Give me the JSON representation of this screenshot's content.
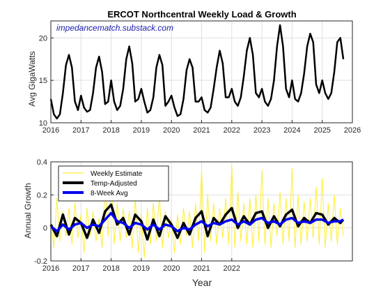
{
  "watermark": "impedancematch.substack.com",
  "colors": {
    "load": "#000000",
    "weekly": "#ffee33",
    "temp": "#000000",
    "avg": "#0000ee",
    "grid": "#dfdfdf",
    "axis": "#262626"
  },
  "chart_data": [
    {
      "type": "line",
      "title": "ERCOT Northcentral Weekly Load & Growth",
      "xlabel": "",
      "ylabel": "Avg GigaWatts",
      "xlim": [
        2016,
        2026
      ],
      "ylim": [
        10,
        22
      ],
      "grid": true,
      "x_ticks": [
        "2016",
        "2017",
        "2018",
        "2019",
        "2020",
        "2021",
        "2022",
        "2023",
        "2024",
        "2025",
        "2026"
      ],
      "y_ticks": [
        "10",
        "15",
        "20"
      ],
      "series": [
        {
          "name": "",
          "x": [
            2016.0,
            2016.1,
            2016.2,
            2016.3,
            2016.4,
            2016.5,
            2016.6,
            2016.7,
            2016.8,
            2016.9,
            2017.0,
            2017.1,
            2017.2,
            2017.3,
            2017.4,
            2017.5,
            2017.6,
            2017.7,
            2017.8,
            2017.9,
            2018.0,
            2018.1,
            2018.2,
            2018.3,
            2018.4,
            2018.5,
            2018.6,
            2018.7,
            2018.8,
            2018.9,
            2019.0,
            2019.1,
            2019.2,
            2019.3,
            2019.4,
            2019.5,
            2019.6,
            2019.7,
            2019.8,
            2019.9,
            2020.0,
            2020.1,
            2020.2,
            2020.3,
            2020.4,
            2020.5,
            2020.6,
            2020.7,
            2020.8,
            2020.9,
            2021.0,
            2021.1,
            2021.2,
            2021.3,
            2021.4,
            2021.5,
            2021.6,
            2021.7,
            2021.8,
            2021.9,
            2022.0,
            2022.1,
            2022.2,
            2022.3,
            2022.4,
            2022.5,
            2022.6,
            2022.7,
            2022.8,
            2022.9,
            2023.0,
            2023.1,
            2023.2,
            2023.3,
            2023.4,
            2023.5,
            2023.6,
            2023.7,
            2023.8,
            2023.9,
            2024.0,
            2024.1,
            2024.2,
            2024.3,
            2024.4,
            2024.5,
            2024.6,
            2024.7,
            2024.8,
            2024.9,
            2025.0,
            2025.1,
            2025.2,
            2025.3,
            2025.4,
            2025.5,
            2025.6,
            2025.7
          ],
          "values": [
            12.8,
            11.0,
            10.5,
            11.0,
            13.5,
            16.8,
            18.0,
            16.5,
            12.5,
            11.5,
            13.2,
            11.8,
            11.3,
            11.5,
            13.5,
            16.5,
            17.8,
            16.0,
            12.2,
            12.5,
            15.0,
            12.5,
            11.5,
            12.0,
            14.0,
            17.5,
            19.0,
            17.0,
            12.5,
            12.8,
            14.0,
            12.5,
            11.2,
            11.5,
            13.0,
            16.5,
            18.0,
            16.8,
            12.0,
            12.5,
            13.2,
            11.8,
            10.8,
            11.0,
            12.8,
            16.2,
            17.5,
            16.5,
            12.5,
            12.5,
            13.0,
            11.5,
            11.2,
            11.8,
            14.0,
            16.5,
            18.5,
            17.0,
            13.0,
            13.0,
            14.0,
            12.5,
            12.0,
            13.0,
            15.5,
            18.5,
            20.0,
            18.0,
            13.5,
            13.0,
            14.0,
            12.5,
            12.0,
            12.8,
            15.0,
            19.0,
            21.5,
            19.0,
            14.0,
            13.0,
            15.0,
            12.8,
            12.5,
            13.5,
            15.8,
            19.0,
            20.5,
            19.5,
            14.5,
            13.5,
            15.0,
            13.5,
            12.8,
            13.5,
            16.0,
            19.5,
            20.0,
            17.5
          ]
        }
      ]
    },
    {
      "type": "line",
      "title": "",
      "xlabel": "Year",
      "ylabel": "Annual Growth",
      "xlim": [
        2016,
        2026
      ],
      "ylim": [
        -0.2,
        0.4
      ],
      "grid": true,
      "x_ticks": [
        "2016",
        "2017",
        "2018",
        "2019",
        "2020",
        "2021",
        "2022"
      ],
      "y_ticks": [
        "-0.2",
        "0",
        "0.2",
        "0.4"
      ],
      "legend": "top-left",
      "series": [
        {
          "name": "Weekly Estimate",
          "x": [
            2016.0,
            2016.1,
            2016.2,
            2016.3,
            2016.4,
            2016.5,
            2016.6,
            2016.7,
            2016.8,
            2016.9,
            2017.0,
            2017.1,
            2017.2,
            2017.3,
            2017.4,
            2017.5,
            2017.6,
            2017.7,
            2017.8,
            2017.9,
            2018.0,
            2018.1,
            2018.2,
            2018.3,
            2018.4,
            2018.5,
            2018.6,
            2018.7,
            2018.8,
            2018.9,
            2019.0,
            2019.1,
            2019.2,
            2019.3,
            2019.4,
            2019.5,
            2019.6,
            2019.7,
            2019.8,
            2019.9,
            2020.0,
            2020.1,
            2020.2,
            2020.3,
            2020.4,
            2020.5,
            2020.6,
            2020.7,
            2020.8,
            2020.9,
            2021.0,
            2021.1,
            2021.2,
            2021.3,
            2021.4,
            2021.5,
            2021.6,
            2021.7,
            2021.8,
            2021.9,
            2022.0,
            2022.1,
            2022.2,
            2022.3,
            2022.4,
            2022.5,
            2022.6,
            2022.7,
            2022.8,
            2022.9,
            2023.0,
            2023.1,
            2023.2,
            2023.3,
            2023.4,
            2023.5,
            2023.6,
            2023.7,
            2023.8,
            2023.9,
            2024.0,
            2024.1,
            2024.2,
            2024.3,
            2024.4,
            2024.5,
            2024.6,
            2024.7,
            2024.8,
            2024.9,
            2025.0,
            2025.1,
            2025.2,
            2025.3,
            2025.4,
            2025.5,
            2025.6,
            2025.7
          ],
          "values": [
            0.05,
            -0.12,
            0.18,
            -0.08,
            0.1,
            -0.05,
            0.12,
            -0.1,
            0.15,
            -0.06,
            0.08,
            -0.15,
            0.12,
            -0.05,
            0.1,
            -0.08,
            0.06,
            -0.12,
            0.25,
            -0.05,
            0.32,
            -0.1,
            0.15,
            -0.08,
            0.12,
            -0.06,
            0.1,
            -0.12,
            0.18,
            -0.15,
            0.08,
            -0.18,
            0.12,
            -0.1,
            0.15,
            -0.08,
            0.2,
            -0.12,
            0.1,
            -0.06,
            0.06,
            -0.15,
            0.08,
            -0.1,
            0.12,
            -0.05,
            0.1,
            -0.12,
            0.15,
            -0.08,
            0.35,
            -0.15,
            0.2,
            -0.08,
            0.15,
            -0.1,
            0.12,
            -0.06,
            0.18,
            -0.1,
            0.38,
            -0.12,
            0.22,
            -0.08,
            0.15,
            -0.1,
            0.18,
            -0.12,
            0.2,
            -0.08,
            0.35,
            -0.1,
            0.18,
            -0.12,
            0.15,
            -0.05,
            0.22,
            -0.1,
            0.18,
            -0.08,
            0.36,
            -0.12,
            0.2,
            -0.1,
            0.16,
            -0.08,
            0.18,
            -0.06,
            0.25,
            -0.1,
            0.3,
            -0.12,
            0.15,
            -0.08,
            0.2,
            -0.1,
            0.12,
            -0.05
          ]
        },
        {
          "name": "Temp-Adjusted",
          "x": [
            2016.0,
            2016.2,
            2016.4,
            2016.6,
            2016.8,
            2017.0,
            2017.2,
            2017.4,
            2017.6,
            2017.8,
            2018.0,
            2018.2,
            2018.4,
            2018.6,
            2018.8,
            2019.0,
            2019.2,
            2019.4,
            2019.6,
            2019.8,
            2020.0,
            2020.2,
            2020.4,
            2020.6,
            2020.8,
            2021.0,
            2021.2,
            2021.4,
            2021.6,
            2021.8,
            2022.0,
            2022.2,
            2022.4,
            2022.6,
            2022.8,
            2023.0,
            2023.2,
            2023.4,
            2023.6,
            2023.8,
            2024.0,
            2024.2,
            2024.4,
            2024.6,
            2024.8,
            2025.0,
            2025.2,
            2025.4,
            2025.6,
            2025.7
          ],
          "values": [
            0.02,
            -0.05,
            0.08,
            -0.04,
            0.06,
            0.03,
            -0.06,
            0.05,
            -0.03,
            0.1,
            0.14,
            0.02,
            0.06,
            -0.04,
            0.08,
            0.04,
            -0.07,
            0.05,
            -0.05,
            0.07,
            0.02,
            -0.06,
            0.03,
            -0.04,
            0.06,
            0.1,
            -0.05,
            0.06,
            0.02,
            0.08,
            0.12,
            0.0,
            0.07,
            0.02,
            0.09,
            0.1,
            0.0,
            0.07,
            0.01,
            0.08,
            0.11,
            0.01,
            0.06,
            0.03,
            0.09,
            0.08,
            0.02,
            0.06,
            0.03,
            0.05
          ]
        },
        {
          "name": "8-Week Avg",
          "x": [
            2016.0,
            2016.2,
            2016.4,
            2016.6,
            2016.8,
            2017.0,
            2017.2,
            2017.4,
            2017.6,
            2017.8,
            2018.0,
            2018.2,
            2018.4,
            2018.6,
            2018.8,
            2019.0,
            2019.2,
            2019.4,
            2019.6,
            2019.8,
            2020.0,
            2020.2,
            2020.4,
            2020.6,
            2020.8,
            2021.0,
            2021.2,
            2021.4,
            2021.6,
            2021.8,
            2022.0,
            2022.2,
            2022.4,
            2022.6,
            2022.8,
            2023.0,
            2023.2,
            2023.4,
            2023.6,
            2023.8,
            2024.0,
            2024.2,
            2024.4,
            2024.6,
            2024.8,
            2025.0,
            2025.2,
            2025.4,
            2025.6,
            2025.7
          ],
          "values": [
            0.01,
            -0.02,
            0.02,
            -0.01,
            0.02,
            0.03,
            0.0,
            0.02,
            0.01,
            0.05,
            0.09,
            0.04,
            0.03,
            0.0,
            0.03,
            0.02,
            -0.01,
            0.02,
            -0.01,
            0.02,
            0.01,
            -0.02,
            0.0,
            -0.01,
            0.02,
            0.04,
            0.01,
            0.03,
            0.02,
            0.04,
            0.05,
            0.02,
            0.04,
            0.02,
            0.05,
            0.06,
            0.03,
            0.04,
            0.02,
            0.05,
            0.06,
            0.03,
            0.04,
            0.03,
            0.05,
            0.05,
            0.03,
            0.04,
            0.04,
            0.05
          ]
        }
      ]
    }
  ]
}
